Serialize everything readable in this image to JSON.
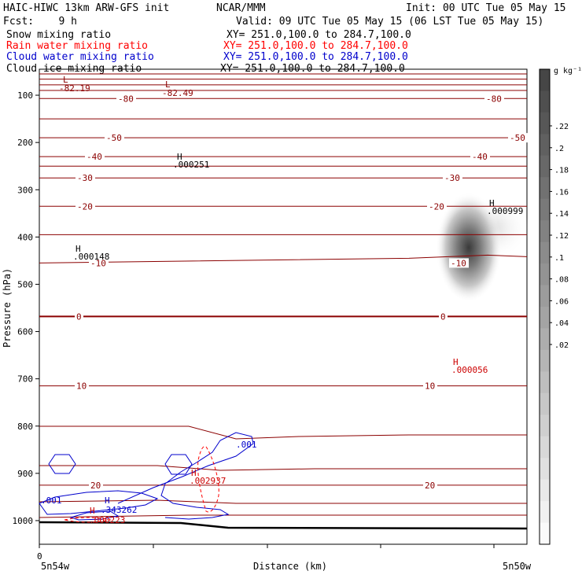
{
  "header": {
    "title": "HAIC-HIWC 13km ARW-GFS init",
    "center": "NCAR/MMM",
    "init": "Init: 00 UTC Tue 05 May 15",
    "fcst": "Fcst:    9 h",
    "valid": "Valid: 09 UTC Tue 05 May 15 (06 LST Tue 05 May 15)",
    "fields": [
      {
        "name": "Snow mixing ratio",
        "xy": "XY= 251.0,100.0 to 284.7,100.0",
        "color": "#000000"
      },
      {
        "name": "Rain water mixing ratio",
        "xy": "XY= 251.0,100.0 to 284.7,100.0",
        "color": "#ff0000"
      },
      {
        "name": "Cloud water mixing ratio",
        "xy": "XY= 251.0,100.0 to 284.7,100.0",
        "color": "#0000cc"
      },
      {
        "name": "Cloud ice mixing ratio",
        "xy": "XY= 251.0,100.0 to 284.7,100.0",
        "color": "#000000"
      }
    ]
  },
  "chart_data": {
    "type": "contour",
    "ylabel": "Pressure (hPa)",
    "xlabel": "Distance (km)",
    "x_left_label": "5n54w",
    "x_right_label": "5n50w",
    "x_tick_label": "0",
    "y_ticks": [
      "100",
      "200",
      "300",
      "400",
      "500",
      "600",
      "700",
      "800",
      "900",
      "1000"
    ],
    "y_range_hPa": [
      45,
      1050
    ],
    "colorbar": {
      "unit": "g kg⁻¹",
      "ticks": [
        ".22",
        ".2",
        ".18",
        ".16",
        ".14",
        ".12",
        ".1",
        ".08",
        ".06",
        ".04",
        ".02"
      ]
    },
    "temperature_contours": [
      {
        "label": "-80",
        "p": 107
      },
      {
        "label": "-50",
        "p": 190
      },
      {
        "label": "-40",
        "p": 230
      },
      {
        "label": "-30",
        "p": 275
      },
      {
        "label": "-20",
        "p": 335
      },
      {
        "label": "-10",
        "p": 455
      },
      {
        "label": "0",
        "p": 568
      },
      {
        "label": "10",
        "p": 715
      },
      {
        "label": "20",
        "p": 925
      }
    ],
    "extrema": [
      {
        "type": "L",
        "value": "-82.19",
        "color": "#8b0000"
      },
      {
        "type": "L",
        "value": "-82.49",
        "color": "#8b0000"
      },
      {
        "type": "H",
        "value": ".000251",
        "color": "#000000"
      },
      {
        "type": "H",
        "value": ".000999",
        "color": "#000000"
      },
      {
        "type": "H",
        "value": ".000148",
        "color": "#000000"
      },
      {
        "type": "H",
        "value": ".000056",
        "color": "#cc0000"
      },
      {
        "type": "H",
        "value": ".002937",
        "color": "#cc0000"
      },
      {
        "type": "H",
        "value": ".343262",
        "color": "#0000cc"
      },
      {
        "type": "H",
        "value": ".000223",
        "color": "#cc0000"
      }
    ],
    "cloud_water_labels": [
      ".001",
      ".001"
    ],
    "colors": {
      "temperature": "#8b0000",
      "rain": "#ff0000",
      "cloud_water": "#0000cc",
      "terrain": "#000000"
    }
  }
}
